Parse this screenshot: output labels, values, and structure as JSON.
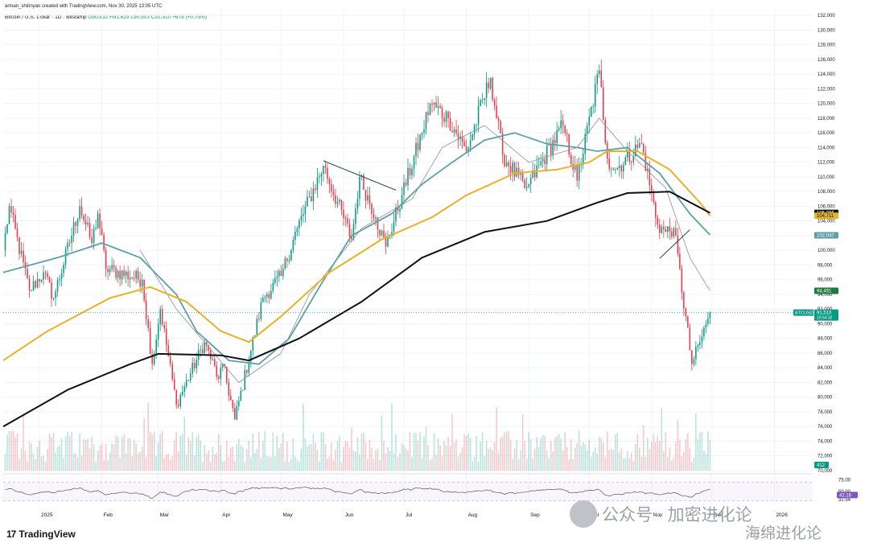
{
  "header": {
    "credit": "arman_shirinyan created with TradingView.com, Nov 30, 2025 13:05 UTC",
    "symbol": "Bitcoin / U.S. Dollar · 1D · Bitstamp",
    "ohlc": "O90,832 H91,629 L90,503 C91,510 +678 (+0.75%)"
  },
  "brand": {
    "name": "TradingView",
    "logo": "17"
  },
  "watermark": {
    "text1": "公众号 · 加密进化论",
    "text2": "海绵进化论"
  },
  "colors": {
    "up": "#089981",
    "down": "#f23645",
    "ma_teal": "#5e9fa6",
    "ma_gold": "#e8b12a",
    "ma_black": "#111111",
    "ma_gray": "#8a8f96",
    "rsi": "#555555",
    "trend": "#2f4d5a"
  },
  "chart_data": {
    "type": "candlestick",
    "x_range": [
      "2024-12-14",
      "2026-01-20"
    ],
    "y_range": [
      70000,
      133000
    ],
    "y_ticks": [
      "132,000",
      "130,000",
      "128,000",
      "126,000",
      "124,000",
      "122,000",
      "120,000",
      "118,000",
      "116,000",
      "114,000",
      "112,000",
      "110,000",
      "108,000",
      "106,000",
      "104,000",
      "102,000",
      "100,000",
      "98,000",
      "96,000",
      "94,000",
      "92,000",
      "90,000",
      "88,000",
      "86,000",
      "84,000",
      "82,000",
      "80,000",
      "78,000",
      "76,000",
      "74,000",
      "72,000",
      "70,000"
    ],
    "x_ticks": [
      {
        "date": "2025-01-01",
        "label": "2025"
      },
      {
        "date": "2025-02-01",
        "label": "Feb"
      },
      {
        "date": "2025-03-01",
        "label": "Mar"
      },
      {
        "date": "2025-04-01",
        "label": "Apr"
      },
      {
        "date": "2025-05-01",
        "label": "May"
      },
      {
        "date": "2025-06-01",
        "label": "Jun"
      },
      {
        "date": "2025-07-01",
        "label": "Jul"
      },
      {
        "date": "2025-08-01",
        "label": "Aug"
      },
      {
        "date": "2025-09-01",
        "label": "Sep"
      },
      {
        "date": "2025-10-01",
        "label": "Oct"
      },
      {
        "date": "2025-11-01",
        "label": "Nov"
      },
      {
        "date": "2025-12-01",
        "label": "Dec"
      },
      {
        "date": "2026-01-01",
        "label": "2026"
      }
    ],
    "price_anchors": [
      [
        "2024-12-14",
        100000
      ],
      [
        "2024-12-17",
        106000
      ],
      [
        "2024-12-27",
        94500
      ],
      [
        "2025-01-03",
        97000
      ],
      [
        "2025-01-08",
        93500
      ],
      [
        "2025-01-21",
        106000
      ],
      [
        "2025-01-27",
        101000
      ],
      [
        "2025-01-30",
        105000
      ],
      [
        "2025-02-03",
        97500
      ],
      [
        "2025-02-21",
        96000
      ],
      [
        "2025-02-26",
        84500
      ],
      [
        "2025-03-02",
        92000
      ],
      [
        "2025-03-10",
        79000
      ],
      [
        "2025-03-24",
        87500
      ],
      [
        "2025-03-31",
        82500
      ],
      [
        "2025-04-02",
        84500
      ],
      [
        "2025-04-08",
        77000
      ],
      [
        "2025-04-22",
        93500
      ],
      [
        "2025-05-01",
        96500
      ],
      [
        "2025-05-09",
        103000
      ],
      [
        "2025-05-22",
        111500
      ],
      [
        "2025-06-05",
        101500
      ],
      [
        "2025-06-09",
        110000
      ],
      [
        "2025-06-17",
        104500
      ],
      [
        "2025-06-22",
        100500
      ],
      [
        "2025-06-30",
        107500
      ],
      [
        "2025-07-10",
        116000
      ],
      [
        "2025-07-14",
        120000
      ],
      [
        "2025-07-23",
        118000
      ],
      [
        "2025-08-01",
        113500
      ],
      [
        "2025-08-13",
        123500
      ],
      [
        "2025-08-19",
        113000
      ],
      [
        "2025-08-30",
        108500
      ],
      [
        "2025-09-01",
        109000
      ],
      [
        "2025-09-18",
        117000
      ],
      [
        "2025-09-25",
        109500
      ],
      [
        "2025-10-06",
        124500
      ],
      [
        "2025-10-10",
        112500
      ],
      [
        "2025-10-14",
        111000
      ],
      [
        "2025-10-27",
        114500
      ],
      [
        "2025-11-04",
        103500
      ],
      [
        "2025-11-08",
        102500
      ],
      [
        "2025-11-12",
        103000
      ],
      [
        "2025-11-21",
        84500
      ],
      [
        "2025-11-25",
        87500
      ],
      [
        "2025-11-30",
        91510
      ]
    ],
    "ma_teal_pts": [
      [
        "2024-12-14",
        97000
      ],
      [
        "2025-01-10",
        99000
      ],
      [
        "2025-02-01",
        101000
      ],
      [
        "2025-02-20",
        99000
      ],
      [
        "2025-03-10",
        94000
      ],
      [
        "2025-03-20",
        89000
      ],
      [
        "2025-04-05",
        85000
      ],
      [
        "2025-04-20",
        84500
      ],
      [
        "2025-05-05",
        88000
      ],
      [
        "2025-05-20",
        95000
      ],
      [
        "2025-06-05",
        102000
      ],
      [
        "2025-06-25",
        105000
      ],
      [
        "2025-07-10",
        109000
      ],
      [
        "2025-07-25",
        112000
      ],
      [
        "2025-08-10",
        115000
      ],
      [
        "2025-08-25",
        116000
      ],
      [
        "2025-09-10",
        114500
      ],
      [
        "2025-09-25",
        114000
      ],
      [
        "2025-10-05",
        113500
      ],
      [
        "2025-10-20",
        114000
      ],
      [
        "2025-11-05",
        110500
      ],
      [
        "2025-11-20",
        105000
      ],
      [
        "2025-11-30",
        102100
      ]
    ],
    "ma_gold_pts": [
      [
        "2024-12-14",
        85000
      ],
      [
        "2025-01-05",
        89000
      ],
      [
        "2025-02-05",
        93500
      ],
      [
        "2025-02-25",
        95000
      ],
      [
        "2025-03-15",
        93000
      ],
      [
        "2025-04-01",
        89000
      ],
      [
        "2025-04-15",
        87500
      ],
      [
        "2025-05-01",
        91000
      ],
      [
        "2025-05-25",
        97000
      ],
      [
        "2025-06-20",
        101500
      ],
      [
        "2025-07-15",
        104500
      ],
      [
        "2025-08-01",
        107500
      ],
      [
        "2025-08-25",
        110500
      ],
      [
        "2025-09-15",
        111000
      ],
      [
        "2025-10-01",
        112000
      ],
      [
        "2025-10-10",
        113500
      ],
      [
        "2025-10-25",
        113500
      ],
      [
        "2025-11-10",
        111000
      ],
      [
        "2025-11-25",
        106500
      ],
      [
        "2025-11-30",
        104700
      ]
    ],
    "ma_black_pts": [
      [
        "2024-12-14",
        76000
      ],
      [
        "2025-01-15",
        81000
      ],
      [
        "2025-02-15",
        84500
      ],
      [
        "2025-03-01",
        85900
      ],
      [
        "2025-04-01",
        85700
      ],
      [
        "2025-04-15",
        85000
      ],
      [
        "2025-05-10",
        88000
      ],
      [
        "2025-06-10",
        93000
      ],
      [
        "2025-07-10",
        99000
      ],
      [
        "2025-08-10",
        102500
      ],
      [
        "2025-09-10",
        104000
      ],
      [
        "2025-10-05",
        106500
      ],
      [
        "2025-10-20",
        107800
      ],
      [
        "2025-11-10",
        108000
      ],
      [
        "2025-11-30",
        105100
      ]
    ],
    "ma_gray_pts": [
      [
        "2025-02-20",
        100000
      ],
      [
        "2025-03-10",
        92000
      ],
      [
        "2025-04-10",
        82000
      ],
      [
        "2025-05-01",
        86000
      ],
      [
        "2025-05-15",
        94000
      ],
      [
        "2025-06-10",
        103000
      ],
      [
        "2025-07-05",
        107000
      ],
      [
        "2025-07-20",
        114000
      ],
      [
        "2025-08-10",
        117000
      ],
      [
        "2025-09-01",
        112000
      ],
      [
        "2025-09-25",
        114000
      ],
      [
        "2025-10-06",
        118000
      ],
      [
        "2025-10-20",
        113500
      ],
      [
        "2025-11-08",
        108500
      ],
      [
        "2025-11-20",
        99000
      ],
      [
        "2025-11-30",
        94500
      ]
    ],
    "trendlines": [
      [
        [
          "2025-05-22",
          112200
        ],
        [
          "2025-06-27",
          108200
        ]
      ],
      [
        [
          "2025-11-05",
          98900
        ],
        [
          "2025-11-20",
          102800
        ]
      ]
    ],
    "badges": [
      {
        "value": 105096,
        "label": "105,096",
        "bg": "#111111",
        "color": "#ffffff"
      },
      {
        "value": 104711,
        "label": "104,711",
        "bg": "#e8b12a",
        "color": "#111111"
      },
      {
        "value": 102047,
        "label": "102,047",
        "bg": "#5e9fa6",
        "color": "#ffffff"
      },
      {
        "value": 94491,
        "label": "94,491",
        "bg": "#217a3d",
        "color": "#ffffff"
      },
      {
        "value": 91510,
        "label": "91,510",
        "sub": "10:54:32",
        "bg": "#089981",
        "color": "#ffffff",
        "tag": "BTCUSD"
      }
    ],
    "rsi": {
      "levels": [
        {
          "value": 75,
          "label": "75.00"
        },
        {
          "value": 50,
          "label": "50.00"
        },
        {
          "value": 32.54,
          "label": "32.54"
        }
      ],
      "current": {
        "value": 42.16,
        "label": "42.16"
      },
      "volume_label": "412"
    }
  }
}
